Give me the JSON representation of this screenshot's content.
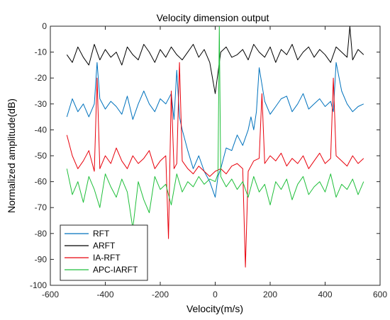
{
  "chart_data": {
    "type": "line",
    "title": "Velocity dimension output",
    "xlabel": "Velocity(m/s)",
    "ylabel": "Normalized amplitude(dB)",
    "xlim": [
      -600,
      600
    ],
    "ylim": [
      -100,
      0
    ],
    "xticks": [
      -600,
      -400,
      -200,
      0,
      200,
      400,
      600
    ],
    "yticks": [
      -100,
      -90,
      -80,
      -70,
      -60,
      -50,
      -40,
      -30,
      -20,
      -10,
      0
    ],
    "grid": false,
    "legend_position": "bottom-left",
    "series": [
      {
        "name": "RFT",
        "color": "#0072BD",
        "x": [
          -540,
          -520,
          -500,
          -480,
          -460,
          -440,
          -430,
          -420,
          -400,
          -380,
          -360,
          -340,
          -320,
          -300,
          -280,
          -260,
          -240,
          -220,
          -200,
          -180,
          -160,
          -150,
          -140,
          -130,
          -120,
          -100,
          -80,
          -60,
          -40,
          -20,
          0,
          10,
          20,
          40,
          60,
          80,
          100,
          120,
          130,
          140,
          150,
          160,
          180,
          200,
          220,
          240,
          260,
          280,
          300,
          320,
          340,
          360,
          380,
          400,
          420,
          430,
          440,
          460,
          480,
          500,
          520,
          540
        ],
        "y": [
          -35,
          -28,
          -33,
          -30,
          -35,
          -30,
          -14,
          -28,
          -32,
          -29,
          -31,
          -34,
          -27,
          -36,
          -30,
          -25,
          -30,
          -33,
          -28,
          -30,
          -26,
          -36,
          -17,
          -35,
          -40,
          -48,
          -55,
          -50,
          -56,
          -60,
          -66,
          -58,
          -55,
          -47,
          -48,
          -42,
          -46,
          -40,
          -35,
          -40,
          -33,
          -16,
          -29,
          -34,
          -31,
          -28,
          -27,
          -33,
          -30,
          -26,
          -32,
          -30,
          -28,
          -31,
          -29,
          -33,
          -14,
          -25,
          -30,
          -33,
          -31,
          -30
        ]
      },
      {
        "name": "ARFT",
        "color": "#000000",
        "x": [
          -540,
          -520,
          -500,
          -480,
          -460,
          -440,
          -420,
          -400,
          -380,
          -360,
          -340,
          -320,
          -300,
          -280,
          -260,
          -240,
          -220,
          -200,
          -180,
          -160,
          -140,
          -120,
          -100,
          -80,
          -60,
          -40,
          -20,
          0,
          20,
          40,
          60,
          80,
          100,
          120,
          140,
          160,
          180,
          200,
          220,
          240,
          260,
          280,
          300,
          320,
          340,
          360,
          380,
          400,
          420,
          440,
          460,
          480,
          490,
          500,
          520,
          540
        ],
        "y": [
          -11,
          -14,
          -8,
          -12,
          -15,
          -7,
          -13,
          -9,
          -12,
          -10,
          -15,
          -8,
          -11,
          -13,
          -7,
          -10,
          -14,
          -9,
          -12,
          -8,
          -11,
          -13,
          -10,
          -7,
          -12,
          -9,
          -14,
          -26,
          -10,
          -8,
          -12,
          -11,
          -9,
          -13,
          -7,
          -10,
          -12,
          -8,
          -14,
          -9,
          -11,
          -7,
          -13,
          -10,
          -8,
          -12,
          -9,
          -11,
          -14,
          -8,
          -10,
          -12,
          0,
          -13,
          -9,
          -11
        ]
      },
      {
        "name": "IA-RFT",
        "color": "#E8000B",
        "x": [
          -540,
          -520,
          -500,
          -480,
          -460,
          -440,
          -430,
          -420,
          -400,
          -380,
          -360,
          -340,
          -320,
          -300,
          -280,
          -260,
          -240,
          -220,
          -200,
          -180,
          -170,
          -160,
          -150,
          -140,
          -130,
          -120,
          -100,
          -80,
          -60,
          -40,
          -20,
          0,
          20,
          40,
          60,
          80,
          100,
          110,
          120,
          140,
          160,
          170,
          180,
          200,
          220,
          240,
          260,
          280,
          300,
          320,
          340,
          360,
          380,
          400,
          420,
          430,
          440,
          460,
          480,
          500,
          520,
          540
        ],
        "y": [
          -42,
          -50,
          -55,
          -52,
          -48,
          -56,
          -20,
          -55,
          -50,
          -53,
          -47,
          -52,
          -55,
          -50,
          -53,
          -51,
          -48,
          -55,
          -52,
          -50,
          -82,
          -25,
          -55,
          -53,
          -14,
          -52,
          -55,
          -57,
          -54,
          -56,
          -58,
          -56,
          -55,
          -57,
          -54,
          -53,
          -55,
          -93,
          -56,
          -52,
          -51,
          -26,
          -53,
          -50,
          -52,
          -49,
          -54,
          -51,
          -53,
          -50,
          -55,
          -52,
          -49,
          -53,
          -51,
          -20,
          -50,
          -52,
          -54,
          -50,
          -53,
          -51
        ]
      },
      {
        "name": "APC-IARFT",
        "color": "#1FBF3A",
        "x": [
          -540,
          -520,
          -500,
          -480,
          -460,
          -440,
          -420,
          -400,
          -380,
          -360,
          -340,
          -320,
          -300,
          -280,
          -260,
          -240,
          -220,
          -200,
          -180,
          -160,
          -140,
          -120,
          -100,
          -80,
          -60,
          -40,
          -20,
          0,
          10,
          15,
          20,
          40,
          60,
          80,
          100,
          120,
          140,
          160,
          180,
          200,
          220,
          240,
          260,
          280,
          300,
          320,
          340,
          360,
          380,
          400,
          420,
          440,
          460,
          480,
          500,
          520,
          540
        ],
        "y": [
          -55,
          -65,
          -60,
          -68,
          -58,
          -63,
          -70,
          -57,
          -62,
          -66,
          -59,
          -64,
          -78,
          -60,
          -67,
          -72,
          -58,
          -63,
          -61,
          -69,
          -57,
          -64,
          -60,
          -62,
          -58,
          -61,
          -59,
          -60,
          -57,
          0,
          -58,
          -62,
          -59,
          -63,
          -60,
          -66,
          -58,
          -64,
          -61,
          -69,
          -60,
          -63,
          -59,
          -67,
          -61,
          -58,
          -65,
          -62,
          -60,
          -64,
          -57,
          -66,
          -61,
          -63,
          -59,
          -65,
          -60
        ]
      }
    ]
  }
}
